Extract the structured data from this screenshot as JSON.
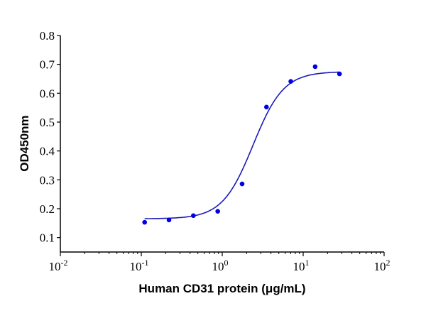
{
  "chart_data": {
    "type": "scatter",
    "title": "",
    "xlabel": "Human CD31 protein (μg/mL)",
    "ylabel": "OD450nm",
    "xscale": "log",
    "xlim": [
      0.01,
      100
    ],
    "ylim": [
      0.05,
      0.8
    ],
    "xticks": [
      {
        "base": "10",
        "exp": "-2",
        "value": 0.01
      },
      {
        "base": "10",
        "exp": "-1",
        "value": 0.1
      },
      {
        "base": "10",
        "exp": "0",
        "value": 1
      },
      {
        "base": "10",
        "exp": "1",
        "value": 10
      },
      {
        "base": "10",
        "exp": "2",
        "value": 100
      }
    ],
    "yticks": [
      "0.1",
      "0.2",
      "0.3",
      "0.4",
      "0.5",
      "0.6",
      "0.7",
      "0.8"
    ],
    "grid": false,
    "legend": "none",
    "color": "#0000e0",
    "curve_color": "#1a1ab8",
    "series": [
      {
        "x": [
          0.11,
          0.22,
          0.44,
          0.88,
          1.76,
          3.52,
          7.03,
          14.06,
          28.1
        ],
        "y": [
          0.153,
          0.161,
          0.176,
          0.191,
          0.286,
          0.552,
          0.641,
          0.692,
          0.667
        ]
      }
    ],
    "fit": {
      "model": "4PL",
      "bottom": 0.165,
      "top": 0.675,
      "ec50": 2.4,
      "hill": 2.3,
      "x_range": [
        0.11,
        28.1
      ]
    }
  }
}
